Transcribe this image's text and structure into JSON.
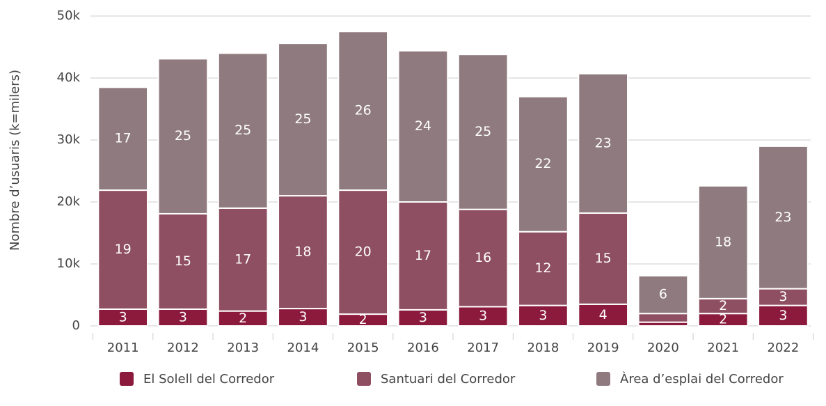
{
  "chart_data": {
    "type": "stacked_bar",
    "y_axis_label": "Nombre d’usuaris (k=milers)",
    "categories": [
      "2011",
      "2012",
      "2013",
      "2014",
      "2015",
      "2016",
      "2017",
      "2018",
      "2019",
      "2020",
      "2021",
      "2022"
    ],
    "series": [
      {
        "name": "El Solell del Corredor",
        "color": "#8b1a3c",
        "values": [
          2700,
          2700,
          2400,
          2800,
          1900,
          2600,
          3100,
          3300,
          3500,
          600,
          2000,
          3300
        ],
        "value_labels": [
          "3",
          "3",
          "2",
          "3",
          "2",
          "3",
          "3",
          "3",
          "4",
          null,
          "2",
          "3"
        ]
      },
      {
        "name": "Santuari del Corredor",
        "color": "#8f4f62",
        "values": [
          19200,
          15400,
          16600,
          18200,
          20000,
          17400,
          15700,
          11900,
          14700,
          1400,
          2400,
          2700
        ],
        "value_labels": [
          "19",
          "15",
          "17",
          "18",
          "20",
          "17",
          "16",
          "12",
          "15",
          null,
          "2",
          "3"
        ]
      },
      {
        "name": "Àrea d’esplai del Corredor",
        "color": "#8f7b7f",
        "values": [
          16600,
          25000,
          25000,
          24600,
          25600,
          24400,
          25000,
          21800,
          22500,
          6100,
          18200,
          23000
        ],
        "value_labels": [
          "17",
          "25",
          "25",
          "25",
          "26",
          "24",
          "25",
          "22",
          "23",
          "6",
          "18",
          "23"
        ]
      }
    ],
    "ylim": [
      0,
      50000
    ],
    "yticks": [
      {
        "value": 0,
        "label": "0"
      },
      {
        "value": 10000,
        "label": "10k"
      },
      {
        "value": 20000,
        "label": "20k"
      },
      {
        "value": 30000,
        "label": "30k"
      },
      {
        "value": 40000,
        "label": "40k"
      },
      {
        "value": 50000,
        "label": "50k"
      }
    ],
    "grid": true,
    "legend": "bottom"
  }
}
